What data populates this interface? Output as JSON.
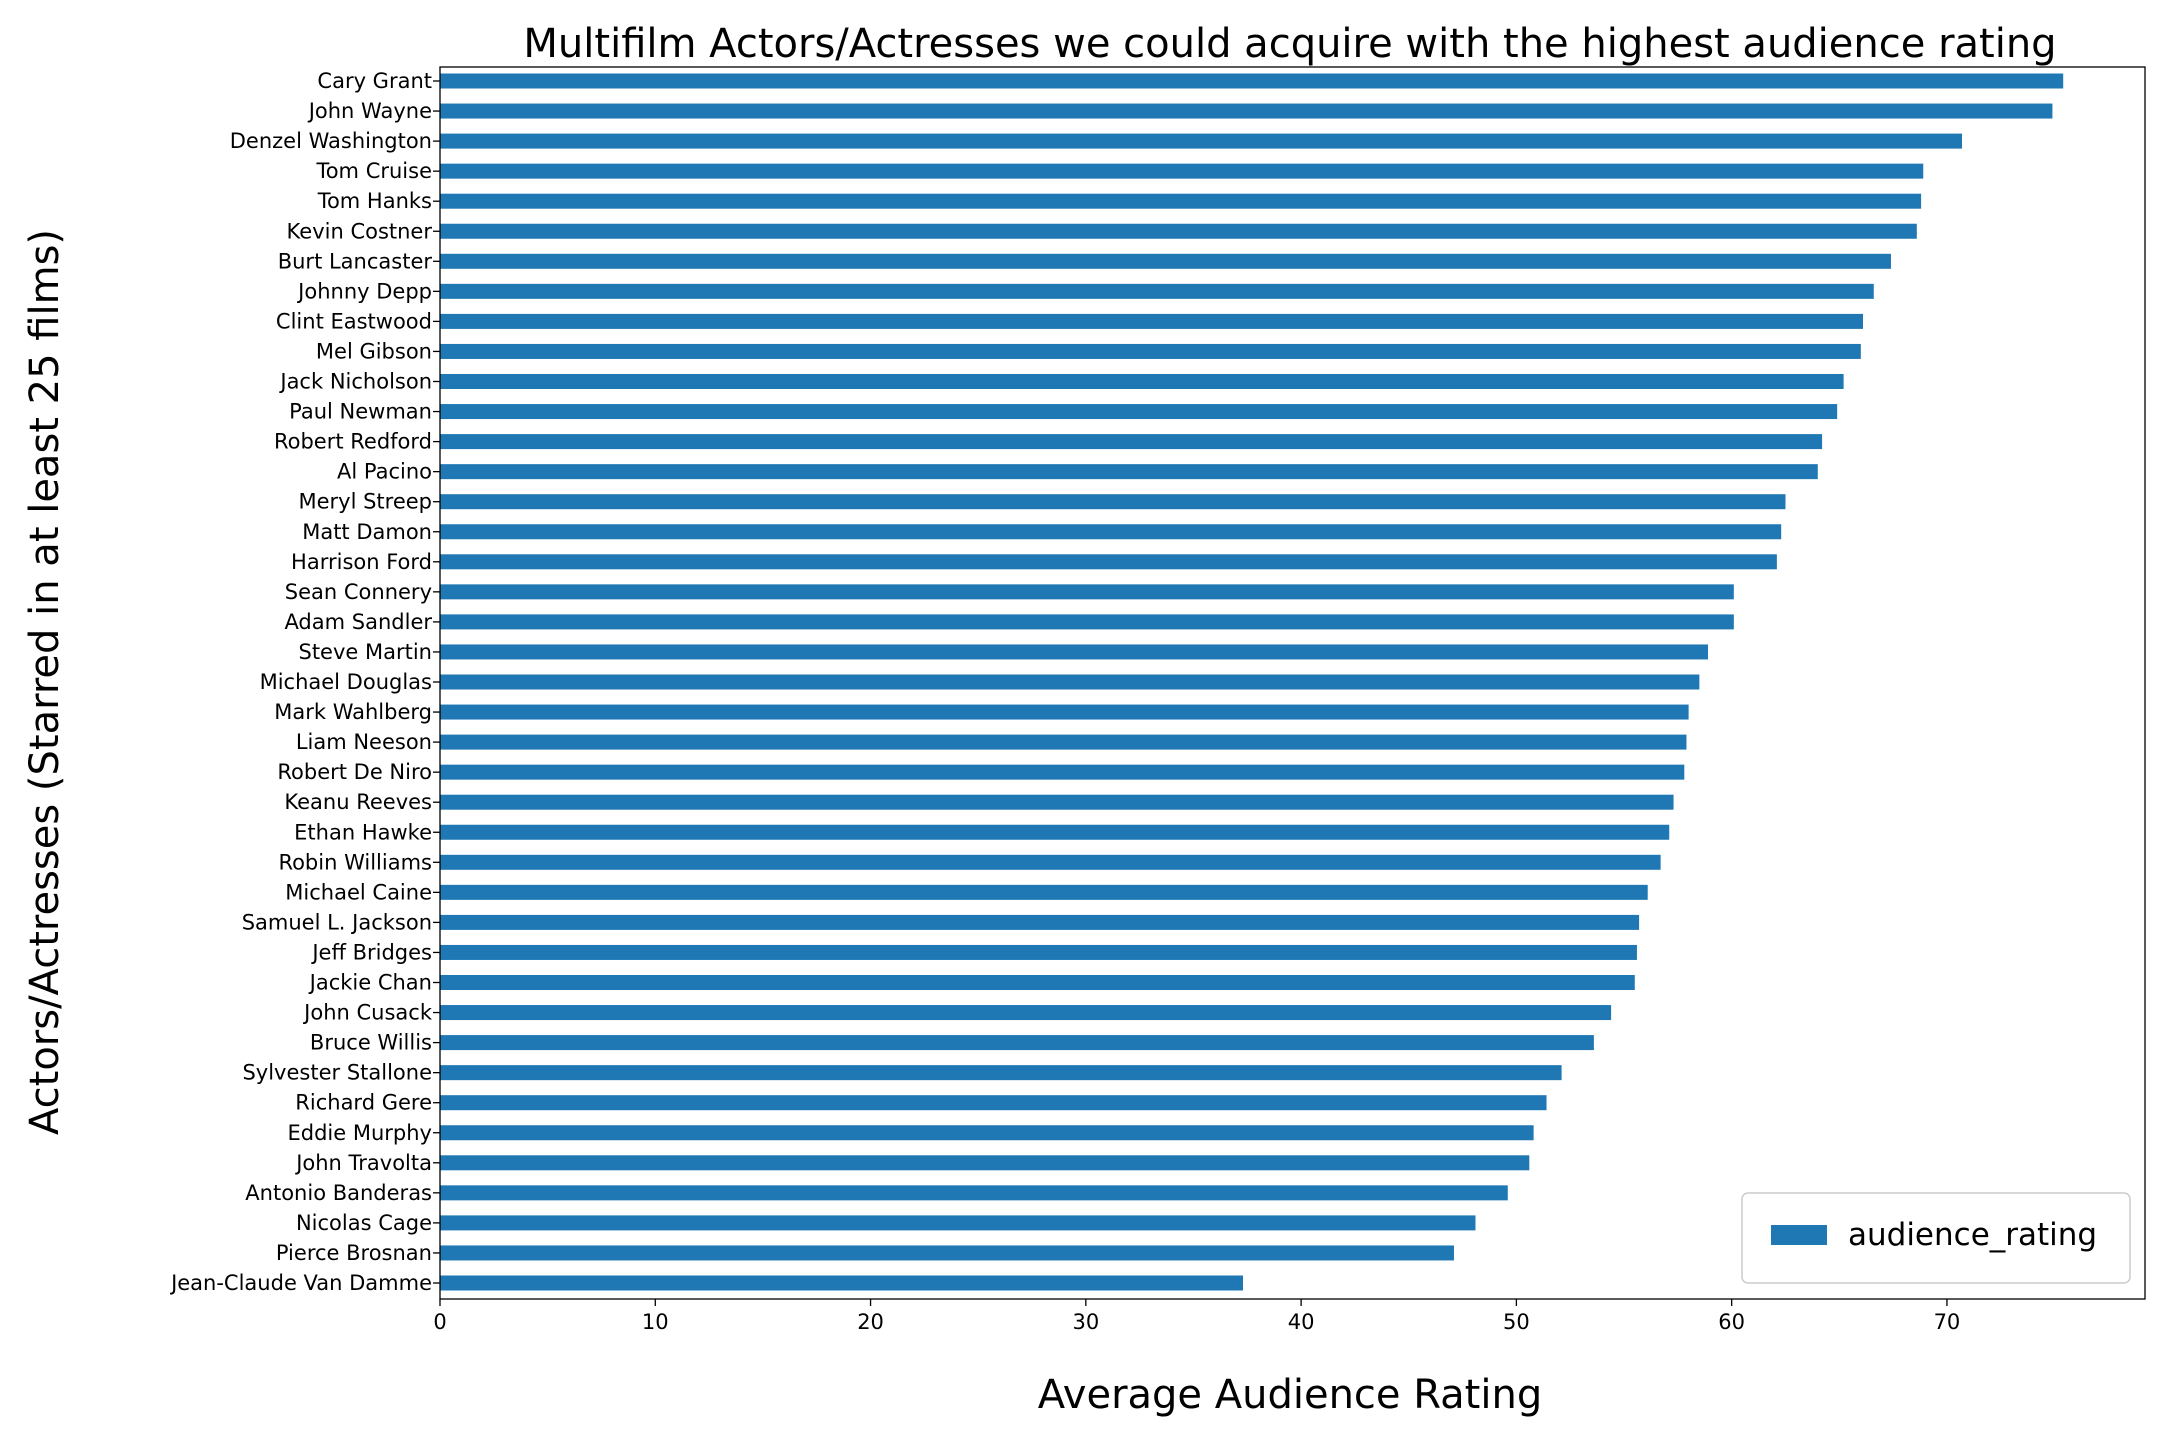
{
  "chart_data": {
    "type": "bar",
    "orientation": "horizontal",
    "title": "Multifilm Actors/Actresses we could acquire with the highest audience rating",
    "xlabel": "Average Audience Rating",
    "ylabel": "Actors/Actresses (Starred in at least 25 films)",
    "xlim": [
      0,
      79.2
    ],
    "xticks": [
      0,
      10,
      20,
      30,
      40,
      50,
      60,
      70
    ],
    "grid": false,
    "legend": {
      "position": "lower-right",
      "entries": [
        "audience_rating"
      ]
    },
    "bar_color": "#1f77b4",
    "categories": [
      "Cary Grant",
      "John Wayne",
      "Denzel Washington",
      "Tom Cruise",
      "Tom Hanks",
      "Kevin Costner",
      "Burt Lancaster",
      "Johnny Depp",
      "Clint Eastwood",
      "Mel Gibson",
      "Jack Nicholson",
      "Paul Newman",
      "Robert Redford",
      "Al Pacino",
      "Meryl Streep",
      "Matt Damon",
      "Harrison Ford",
      "Sean Connery",
      "Adam Sandler",
      "Steve Martin",
      "Michael Douglas",
      "Mark Wahlberg",
      "Liam Neeson",
      "Robert De Niro",
      "Keanu Reeves",
      "Ethan Hawke",
      "Robin Williams",
      "Michael Caine",
      "Samuel L. Jackson",
      "Jeff Bridges",
      "Jackie Chan",
      "John Cusack",
      "Bruce Willis",
      "Sylvester Stallone",
      "Richard Gere",
      "Eddie Murphy",
      "John Travolta",
      "Antonio Banderas",
      "Nicolas Cage",
      "Pierce Brosnan",
      "Jean-Claude Van Damme"
    ],
    "series": [
      {
        "name": "audience_rating",
        "values": [
          75.4,
          74.9,
          70.7,
          68.9,
          68.8,
          68.6,
          67.4,
          66.6,
          66.1,
          66.0,
          65.2,
          64.9,
          64.2,
          64.0,
          62.5,
          62.3,
          62.1,
          60.1,
          60.1,
          58.9,
          58.5,
          58.0,
          57.9,
          57.8,
          57.3,
          57.1,
          56.7,
          56.1,
          55.7,
          55.6,
          55.5,
          54.4,
          53.6,
          52.1,
          51.4,
          50.8,
          50.6,
          49.6,
          48.1,
          47.1,
          37.3
        ]
      }
    ]
  }
}
